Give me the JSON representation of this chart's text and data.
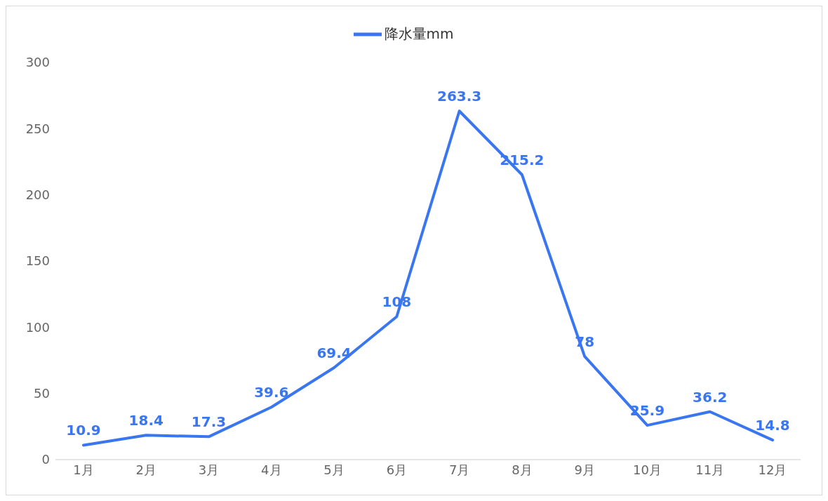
{
  "chart_data": {
    "type": "line",
    "categories": [
      "1月",
      "2月",
      "3月",
      "4月",
      "5月",
      "6月",
      "7月",
      "8月",
      "9月",
      "10月",
      "11月",
      "12月"
    ],
    "series": [
      {
        "name": "降水量mm",
        "color": "#3a76f0",
        "values": [
          10.9,
          18.4,
          17.3,
          39.6,
          69.4,
          108,
          263.3,
          215.2,
          78,
          25.9,
          36.2,
          14.8
        ]
      }
    ],
    "ylim": [
      0,
      300
    ],
    "yticks": [
      0,
      50,
      100,
      150,
      200,
      250,
      300
    ],
    "grid": false,
    "legend": "top",
    "data_labels": true,
    "marker": "none",
    "line_style": "solid"
  }
}
